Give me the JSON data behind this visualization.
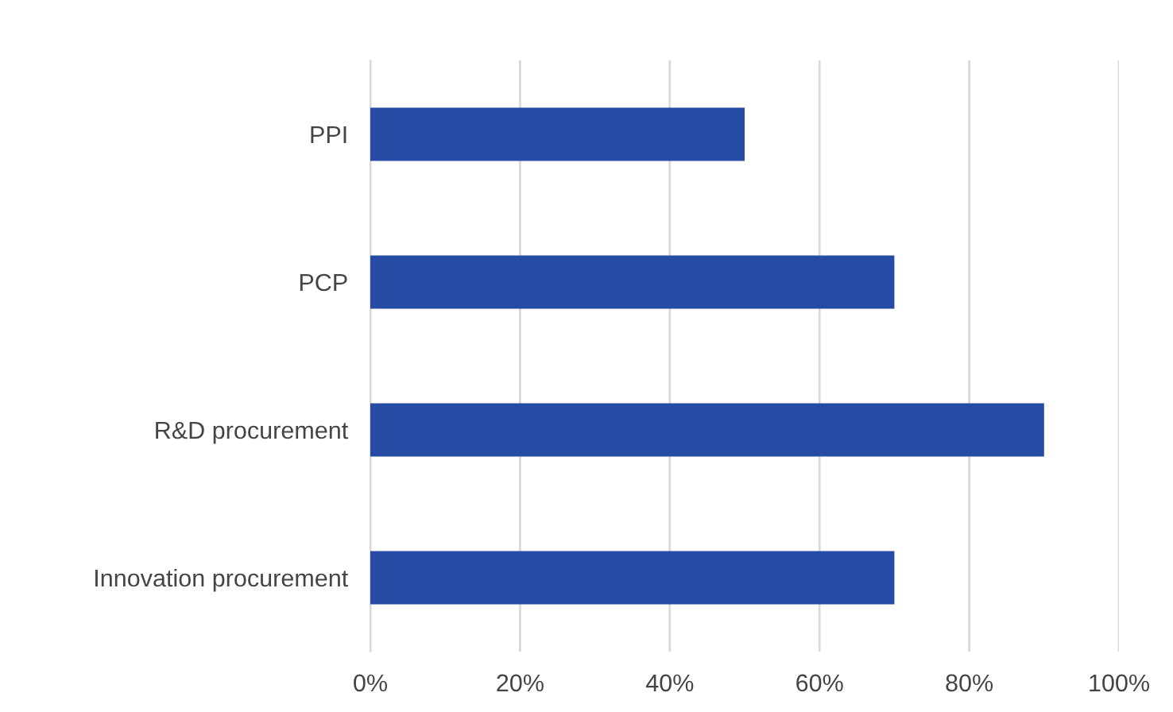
{
  "chart_data": {
    "type": "bar",
    "orientation": "horizontal",
    "categories": [
      "PPI",
      "PCP",
      "R&D procurement",
      "Innovation procurement"
    ],
    "values": [
      50,
      70,
      90,
      70
    ],
    "color": "#264ba5",
    "xlim": [
      0,
      100
    ],
    "xticks": [
      {
        "value": 0,
        "label": "0%"
      },
      {
        "value": 20,
        "label": "20%"
      },
      {
        "value": 40,
        "label": "40%"
      },
      {
        "value": 60,
        "label": "60%"
      },
      {
        "value": 80,
        "label": "80%"
      },
      {
        "value": 100,
        "label": "100%"
      }
    ],
    "grid": "x"
  }
}
